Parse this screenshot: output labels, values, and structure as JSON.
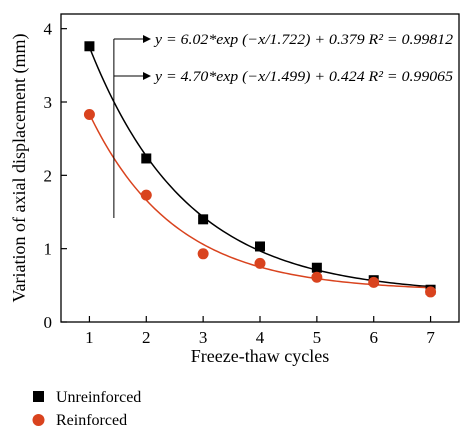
{
  "chart_data": {
    "type": "scatter",
    "title": "",
    "xlabel": "Freeze-thaw cycles",
    "ylabel": "Variation of axial displacement (mm)",
    "xlim": [
      0.5,
      7.5
    ],
    "ylim": [
      0,
      4.2
    ],
    "xticks": [
      "1",
      "2",
      "3",
      "4",
      "5",
      "6",
      "7"
    ],
    "yticks": [
      "0",
      "1",
      "2",
      "3",
      "4"
    ],
    "grid": false,
    "legend_position": "bottom-left",
    "series": [
      {
        "name": "Unreinforced",
        "marker": "square",
        "color": "#000000",
        "x": [
          1,
          2,
          3,
          4,
          5,
          6,
          7
        ],
        "values": [
          3.76,
          2.23,
          1.4,
          1.03,
          0.74,
          0.57,
          0.44
        ],
        "fit": {
          "a": 6.02,
          "t": 1.722,
          "y0": 0.379,
          "equation": "y = 6.02*exp (−x/1.722) + 0.379 R² = 0.99812"
        }
      },
      {
        "name": "Reinforced",
        "marker": "circle",
        "color": "#d9431e",
        "x": [
          1,
          2,
          3,
          4,
          5,
          6,
          7
        ],
        "values": [
          2.83,
          1.73,
          0.93,
          0.8,
          0.61,
          0.54,
          0.41
        ],
        "fit": {
          "a": 4.7,
          "t": 1.499,
          "y0": 0.424,
          "equation": "y = 4.70*exp (−x/1.499) + 0.424 R² = 0.99065"
        }
      }
    ]
  }
}
